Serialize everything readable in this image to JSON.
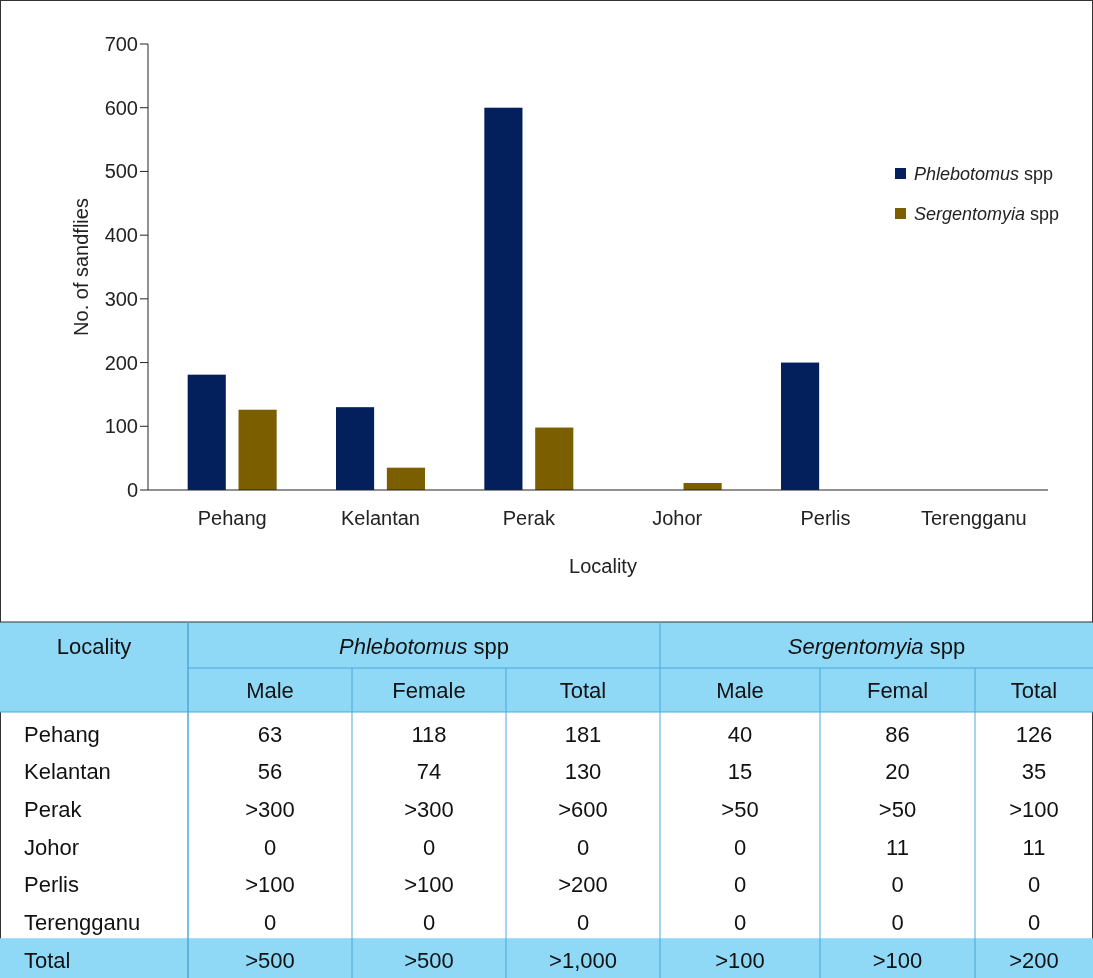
{
  "chart_data": [
    {
      "type": "bar",
      "xlabel": "Locality",
      "ylabel": "No. of sandflies",
      "categories": [
        "Pehang",
        "Kelantan",
        "Perak",
        "Johor",
        "Perlis",
        "Terengganu"
      ],
      "series": [
        {
          "name": "Phlebotomus spp",
          "color": "#031f5c",
          "values": [
            181,
            130,
            600,
            0,
            200,
            0
          ]
        },
        {
          "name": "Sergentomyia spp",
          "color": "#7b5e00",
          "values": [
            126,
            35,
            98,
            11,
            0,
            0
          ]
        }
      ],
      "ylim": [
        0,
        700
      ],
      "yticks": [
        0,
        100,
        200,
        300,
        400,
        500,
        600,
        700
      ],
      "grid": false,
      "legend": "top right"
    },
    {
      "type": "other",
      "annotations": [
        "Locality",
        "Phlebotomus spp",
        "Sergentomyia spp"
      ],
      "categories": [
        "Male",
        "Female",
        "Total",
        "Male",
        "Femal",
        "Total"
      ],
      "y_categories": [
        "Pehang",
        "Kelantan",
        "Perak",
        "Johor",
        "Perlis",
        "Terengganu",
        "Total"
      ],
      "cell_labels": [
        [
          "63",
          "118",
          "181",
          "40",
          "86",
          "126"
        ],
        [
          "56",
          "74",
          "130",
          "15",
          "20",
          "35"
        ],
        [
          ">300",
          ">300",
          ">600",
          ">50",
          ">50",
          ">100"
        ],
        [
          "0",
          "0",
          "0",
          "0",
          "11",
          "11"
        ],
        [
          ">100",
          ">100",
          ">200",
          "0",
          "0",
          "0"
        ],
        [
          "0",
          "0",
          "0",
          "0",
          "0",
          "0"
        ],
        [
          ">500",
          ">500",
          ">1,000",
          ">100",
          ">100",
          ">200"
        ]
      ]
    }
  ]
}
